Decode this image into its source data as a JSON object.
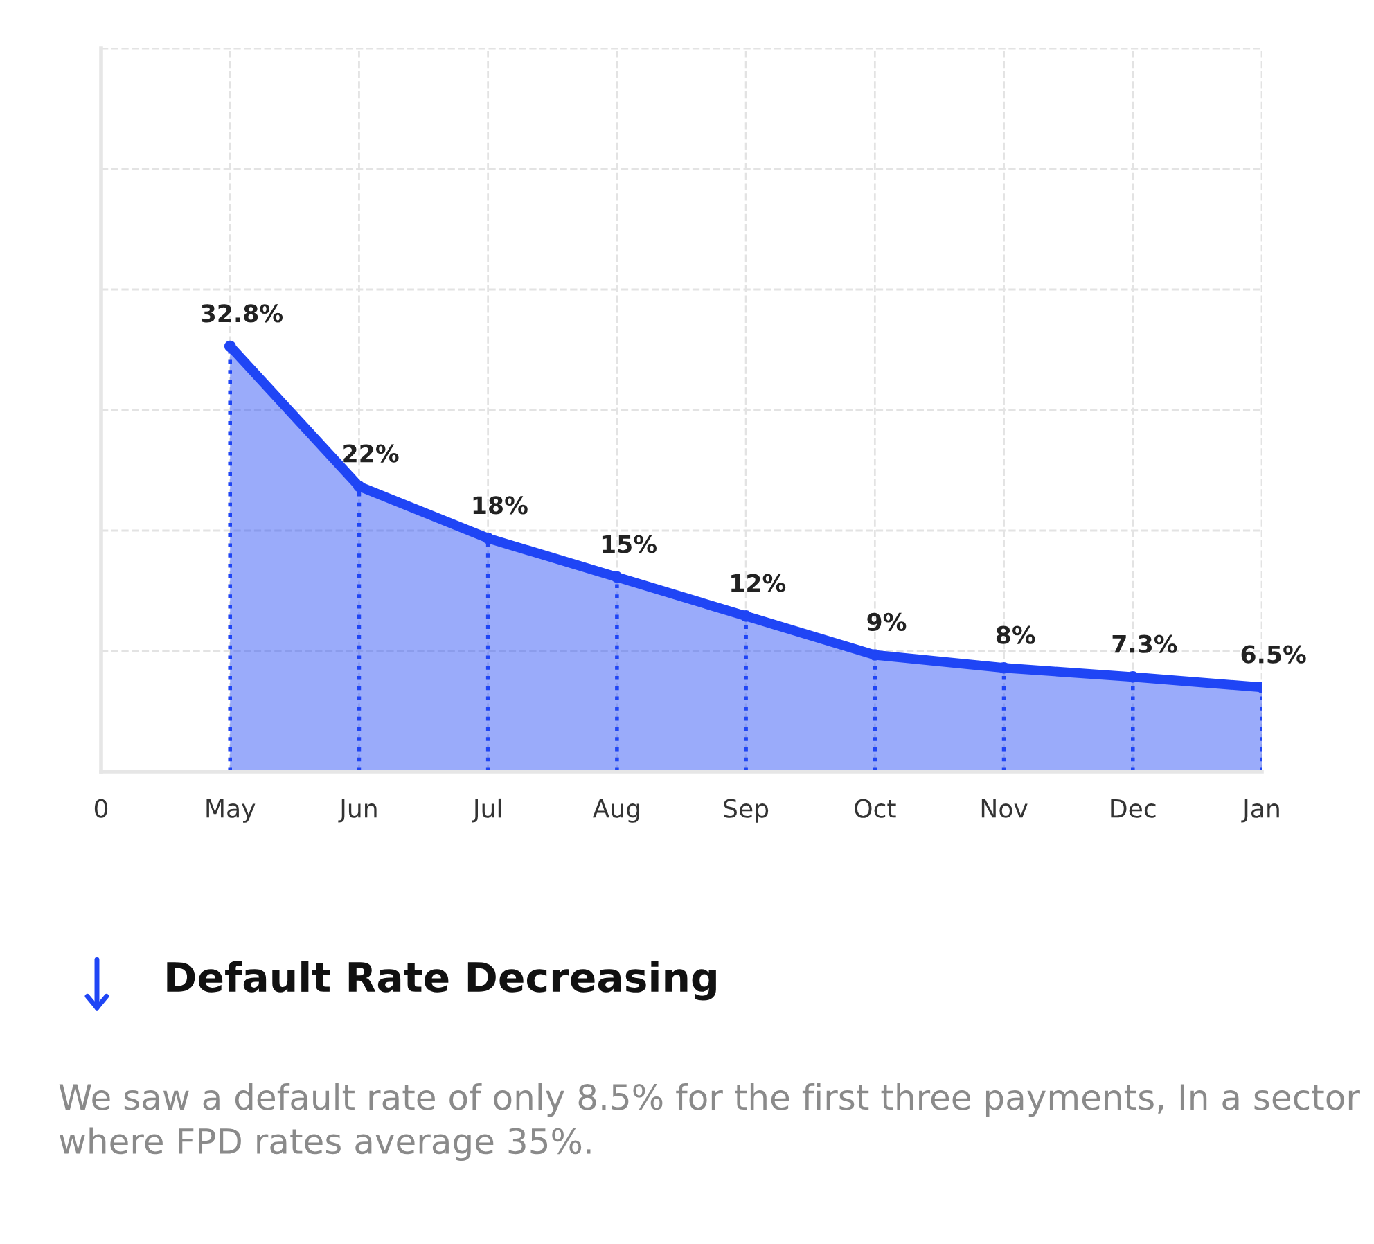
{
  "chart_data": {
    "type": "area",
    "title": "Default Rate Decreasing",
    "annotations": [
      "We saw a default rate of only 8.5% for the first three payments, In a sector where FPD rates average 35%."
    ],
    "categories": [
      "0",
      "May",
      "Jun",
      "Jul",
      "Aug",
      "Sep",
      "Oct",
      "Nov",
      "Dec",
      "Jan"
    ],
    "grid": true,
    "tick_labels": "x",
    "series": [
      {
        "color": "#1f45f5",
        "values": [
          null,
          32.8,
          22,
          18,
          15,
          12,
          9,
          8,
          7.3,
          6.5
        ]
      },
      {
        "type": "lollipop",
        "color": "#1f45f5",
        "marker": "circle",
        "line_style": "dotted",
        "values": [
          null,
          32.8,
          22,
          18,
          15,
          12,
          9,
          8,
          7.3,
          6.5
        ],
        "value_labels": [
          null,
          "32.8%",
          "22%",
          "18%",
          "15%",
          "12%",
          "9%",
          "8%",
          "7.3%",
          "6.5%"
        ]
      }
    ]
  }
}
